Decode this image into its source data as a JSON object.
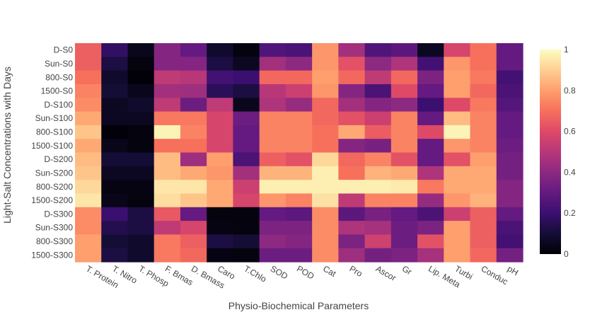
{
  "chart_data": {
    "type": "heatmap",
    "title": "",
    "xlabel": "Physio-Biochemical Parameters",
    "ylabel": "Light-Salt Concentrations with Days",
    "colorscale": "magma",
    "zrange": [
      0,
      1
    ],
    "colorbar_ticks": [
      "0",
      "0.2",
      "0.4",
      "0.6",
      "0.8",
      "1"
    ],
    "x_categories": [
      "T. Protein",
      "T. Nitro",
      "T. Phosp",
      "F. Bmas",
      "D. Bmass",
      "Caro",
      "T.Chlo",
      "SOD",
      "POD",
      "Cat",
      "Pro",
      "Ascor",
      "Gr",
      "Lip. Meta",
      "Turbi",
      "Conduc",
      "pH"
    ],
    "y_categories": [
      "D-S0",
      "Sun-S0",
      "800-S0",
      "1500-S0",
      "D-S100",
      "Sun-S100",
      "800-S100",
      "1500-S100",
      "D-S200",
      "Sun-S200",
      "800-S200",
      "1500-S200",
      "D-S300",
      "Sun-S300",
      "800-S300",
      "1500-S300"
    ],
    "z": [
      [
        0.66,
        0.18,
        0.05,
        0.38,
        0.3,
        0.08,
        0.02,
        0.25,
        0.24,
        0.78,
        0.45,
        0.25,
        0.28,
        0.06,
        0.58,
        0.7,
        0.3
      ],
      [
        0.66,
        0.12,
        0.02,
        0.38,
        0.38,
        0.12,
        0.06,
        0.45,
        0.4,
        0.78,
        0.62,
        0.4,
        0.48,
        0.22,
        0.78,
        0.7,
        0.3
      ],
      [
        0.7,
        0.08,
        0.01,
        0.52,
        0.5,
        0.22,
        0.2,
        0.68,
        0.68,
        0.8,
        0.68,
        0.52,
        0.68,
        0.36,
        0.8,
        0.72,
        0.22
      ],
      [
        0.74,
        0.1,
        0.05,
        0.45,
        0.44,
        0.16,
        0.12,
        0.5,
        0.55,
        0.78,
        0.38,
        0.24,
        0.6,
        0.3,
        0.8,
        0.68,
        0.24
      ],
      [
        0.76,
        0.06,
        0.08,
        0.52,
        0.32,
        0.52,
        0.05,
        0.48,
        0.42,
        0.68,
        0.45,
        0.38,
        0.4,
        0.2,
        0.6,
        0.72,
        0.26
      ],
      [
        0.82,
        0.06,
        0.06,
        0.72,
        0.72,
        0.58,
        0.32,
        0.74,
        0.74,
        0.68,
        0.62,
        0.55,
        0.74,
        0.3,
        0.86,
        0.74,
        0.3
      ],
      [
        0.88,
        0.01,
        0.02,
        0.98,
        0.74,
        0.58,
        0.3,
        0.74,
        0.74,
        0.7,
        0.82,
        0.65,
        0.74,
        0.6,
        0.98,
        0.74,
        0.3
      ],
      [
        0.82,
        0.04,
        0.02,
        0.7,
        0.7,
        0.58,
        0.3,
        0.74,
        0.74,
        0.7,
        0.38,
        0.35,
        0.74,
        0.3,
        0.78,
        0.74,
        0.32
      ],
      [
        0.86,
        0.1,
        0.1,
        0.86,
        0.44,
        0.8,
        0.24,
        0.66,
        0.62,
        0.92,
        0.68,
        0.74,
        0.62,
        0.3,
        0.62,
        0.8,
        0.34
      ],
      [
        0.88,
        0.06,
        0.06,
        0.86,
        0.82,
        0.78,
        0.45,
        0.84,
        0.84,
        0.97,
        0.7,
        0.84,
        0.82,
        0.48,
        0.82,
        0.82,
        0.34
      ],
      [
        0.92,
        0.03,
        0.03,
        0.95,
        0.95,
        0.82,
        0.55,
        0.97,
        0.97,
        0.97,
        0.97,
        0.97,
        0.96,
        0.72,
        0.82,
        0.82,
        0.38
      ],
      [
        0.95,
        0.04,
        0.02,
        0.93,
        0.88,
        0.82,
        0.58,
        0.78,
        0.74,
        0.94,
        0.52,
        0.74,
        0.74,
        0.42,
        0.78,
        0.84,
        0.38
      ],
      [
        0.76,
        0.2,
        0.12,
        0.64,
        0.3,
        0.02,
        0.02,
        0.3,
        0.28,
        0.76,
        0.28,
        0.35,
        0.3,
        0.24,
        0.55,
        0.66,
        0.3
      ],
      [
        0.76,
        0.14,
        0.12,
        0.52,
        0.58,
        0.03,
        0.02,
        0.36,
        0.36,
        0.76,
        0.48,
        0.46,
        0.32,
        0.36,
        0.8,
        0.66,
        0.24
      ],
      [
        0.8,
        0.1,
        0.08,
        0.72,
        0.66,
        0.12,
        0.1,
        0.4,
        0.38,
        0.76,
        0.36,
        0.56,
        0.32,
        0.62,
        0.8,
        0.66,
        0.22
      ],
      [
        0.8,
        0.12,
        0.08,
        0.72,
        0.68,
        0.03,
        0.02,
        0.32,
        0.32,
        0.76,
        0.44,
        0.34,
        0.36,
        0.46,
        0.8,
        0.68,
        0.34
      ]
    ]
  }
}
